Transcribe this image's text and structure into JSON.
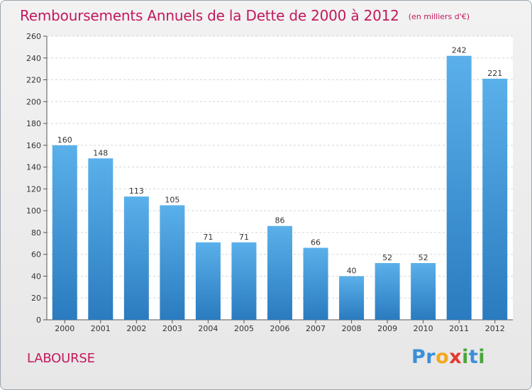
{
  "header": {
    "title": "Remboursements Annuels de la Dette de 2000 à 2012",
    "subtitle": "(en milliers d'€)"
  },
  "footer": {
    "commune": "LABOURSE",
    "brand_letters": [
      {
        "char": "P",
        "color": "#3b8fd6"
      },
      {
        "char": "r",
        "color": "#3b8fd6"
      },
      {
        "char": "o",
        "color": "#f2a81d"
      },
      {
        "char": "x",
        "color": "#e5382e"
      },
      {
        "char": "i",
        "color": "#48a63b"
      },
      {
        "char": "t",
        "color": "#3b8fd6"
      },
      {
        "char": "i",
        "color": "#48a63b"
      }
    ]
  },
  "chart_data": {
    "type": "bar",
    "categories": [
      "2000",
      "2001",
      "2002",
      "2003",
      "2004",
      "2005",
      "2006",
      "2007",
      "2008",
      "2009",
      "2010",
      "2011",
      "2012"
    ],
    "values": [
      160,
      148,
      113,
      105,
      71,
      71,
      86,
      66,
      40,
      52,
      52,
      242,
      221
    ],
    "data_labels": [
      "160",
      "148",
      "113",
      "105",
      "71",
      "71",
      "86",
      "66",
      "40",
      "52",
      "52",
      "242",
      "221"
    ],
    "y_ticks": [
      "0",
      "20",
      "40",
      "60",
      "80",
      "100",
      "120",
      "140",
      "160",
      "180",
      "200",
      "220",
      "240",
      "260"
    ],
    "ylim": [
      0,
      260
    ],
    "grid": true,
    "bar_color_top": "#5ab0ea",
    "bar_color_bottom": "#2a7bbf",
    "title": "Remboursements Annuels de la Dette de 2000 à 2012",
    "xlabel": "",
    "ylabel": ""
  }
}
